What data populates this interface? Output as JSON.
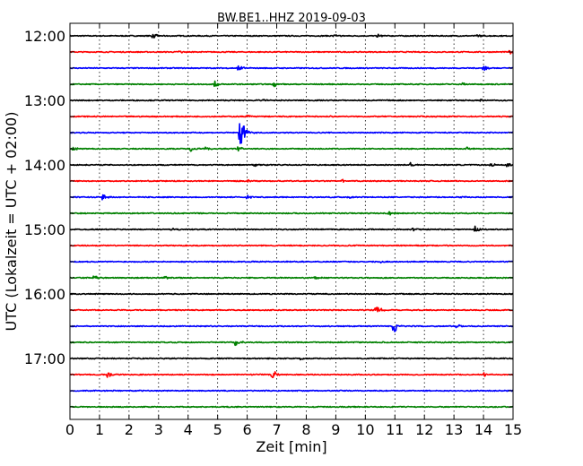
{
  "chart_data": {
    "type": "line",
    "title": "BW.BE1..HHZ 2019-09-03",
    "xlabel": "Zeit  [min]",
    "ylabel": "UTC (Lokalzeit = UTC + 02:00)",
    "xlim": [
      0,
      15
    ],
    "x_ticks": [
      "0",
      "1",
      "2",
      "3",
      "4",
      "5",
      "6",
      "7",
      "8",
      "9",
      "10",
      "11",
      "12",
      "13",
      "14",
      "15"
    ],
    "y_tick_labels": [
      "12:00",
      "13:00",
      "14:00",
      "15:00",
      "16:00",
      "17:00"
    ],
    "grid": "vertical-dotted",
    "series_colors": [
      "#000000",
      "#ff0000",
      "#0000ff",
      "#008000"
    ],
    "series": [
      {
        "start": "12:00",
        "events": [
          {
            "t": 2.8,
            "amp": 0.35
          },
          {
            "t": 8.9,
            "amp": 0.2
          },
          {
            "t": 10.4,
            "amp": 0.25
          },
          {
            "t": 13.8,
            "amp": 0.25
          }
        ]
      },
      {
        "start": "12:15",
        "events": [
          {
            "t": 3.7,
            "amp": 0.25
          },
          {
            "t": 14.9,
            "amp": 0.35
          }
        ]
      },
      {
        "start": "12:30",
        "events": [
          {
            "t": 5.7,
            "amp": 0.4
          },
          {
            "t": 14.0,
            "amp": 0.35
          }
        ]
      },
      {
        "start": "12:45",
        "events": [
          {
            "t": 4.9,
            "amp": 0.35
          },
          {
            "t": 6.9,
            "amp": 0.3
          },
          {
            "t": 13.3,
            "amp": 0.25
          }
        ]
      },
      {
        "start": "13:00",
        "events": [
          {
            "t": 6.5,
            "amp": 0.2
          },
          {
            "t": 13.9,
            "amp": 0.2
          }
        ]
      },
      {
        "start": "13:15",
        "events": [
          {
            "t": 6.0,
            "amp": 0.25
          },
          {
            "t": 8.7,
            "amp": 0.2
          }
        ]
      },
      {
        "start": "13:30",
        "events": [
          {
            "t": 5.75,
            "amp": 2.6
          }
        ]
      },
      {
        "start": "13:45",
        "events": [
          {
            "t": 0.1,
            "amp": 0.3
          },
          {
            "t": 4.1,
            "amp": 0.35
          },
          {
            "t": 4.6,
            "amp": 0.3
          },
          {
            "t": 5.7,
            "amp": 0.4
          },
          {
            "t": 13.4,
            "amp": 0.3
          }
        ]
      },
      {
        "start": "14:00",
        "events": [
          {
            "t": 6.2,
            "amp": 0.3
          },
          {
            "t": 11.5,
            "amp": 0.3
          },
          {
            "t": 14.2,
            "amp": 0.4
          },
          {
            "t": 14.8,
            "amp": 0.25
          }
        ]
      },
      {
        "start": "14:15",
        "events": [
          {
            "t": 6.0,
            "amp": 0.2
          },
          {
            "t": 9.2,
            "amp": 0.2
          }
        ]
      },
      {
        "start": "14:30",
        "events": [
          {
            "t": 1.1,
            "amp": 0.45
          },
          {
            "t": 6.0,
            "amp": 0.25
          },
          {
            "t": 9.4,
            "amp": 0.2
          },
          {
            "t": 13.2,
            "amp": 0.2
          }
        ]
      },
      {
        "start": "14:45",
        "events": [
          {
            "t": 10.8,
            "amp": 0.3
          }
        ]
      },
      {
        "start": "15:00",
        "events": [
          {
            "t": 3.4,
            "amp": 0.2
          },
          {
            "t": 11.6,
            "amp": 0.25
          },
          {
            "t": 13.7,
            "amp": 0.45
          }
        ]
      },
      {
        "start": "15:15",
        "events": []
      },
      {
        "start": "15:30",
        "events": [
          {
            "t": 10.5,
            "amp": 0.15
          }
        ]
      },
      {
        "start": "15:45",
        "events": [
          {
            "t": 0.8,
            "amp": 0.3
          },
          {
            "t": 3.2,
            "amp": 0.3
          },
          {
            "t": 8.3,
            "amp": 0.25
          }
        ]
      },
      {
        "start": "16:00",
        "events": []
      },
      {
        "start": "16:15",
        "events": [
          {
            "t": 10.35,
            "amp": 0.95
          }
        ]
      },
      {
        "start": "16:30",
        "events": [
          {
            "t": 10.95,
            "amp": 1.3
          },
          {
            "t": 13.1,
            "amp": 0.35
          }
        ]
      },
      {
        "start": "16:45",
        "events": [
          {
            "t": 5.6,
            "amp": 0.4
          }
        ]
      },
      {
        "start": "17:00",
        "events": [
          {
            "t": 7.8,
            "amp": 0.15
          }
        ]
      },
      {
        "start": "17:15",
        "events": [
          {
            "t": 1.25,
            "amp": 0.5
          },
          {
            "t": 6.85,
            "amp": 0.75
          },
          {
            "t": 14.0,
            "amp": 0.35
          }
        ]
      },
      {
        "start": "17:30",
        "events": []
      },
      {
        "start": "17:45",
        "events": []
      }
    ]
  }
}
